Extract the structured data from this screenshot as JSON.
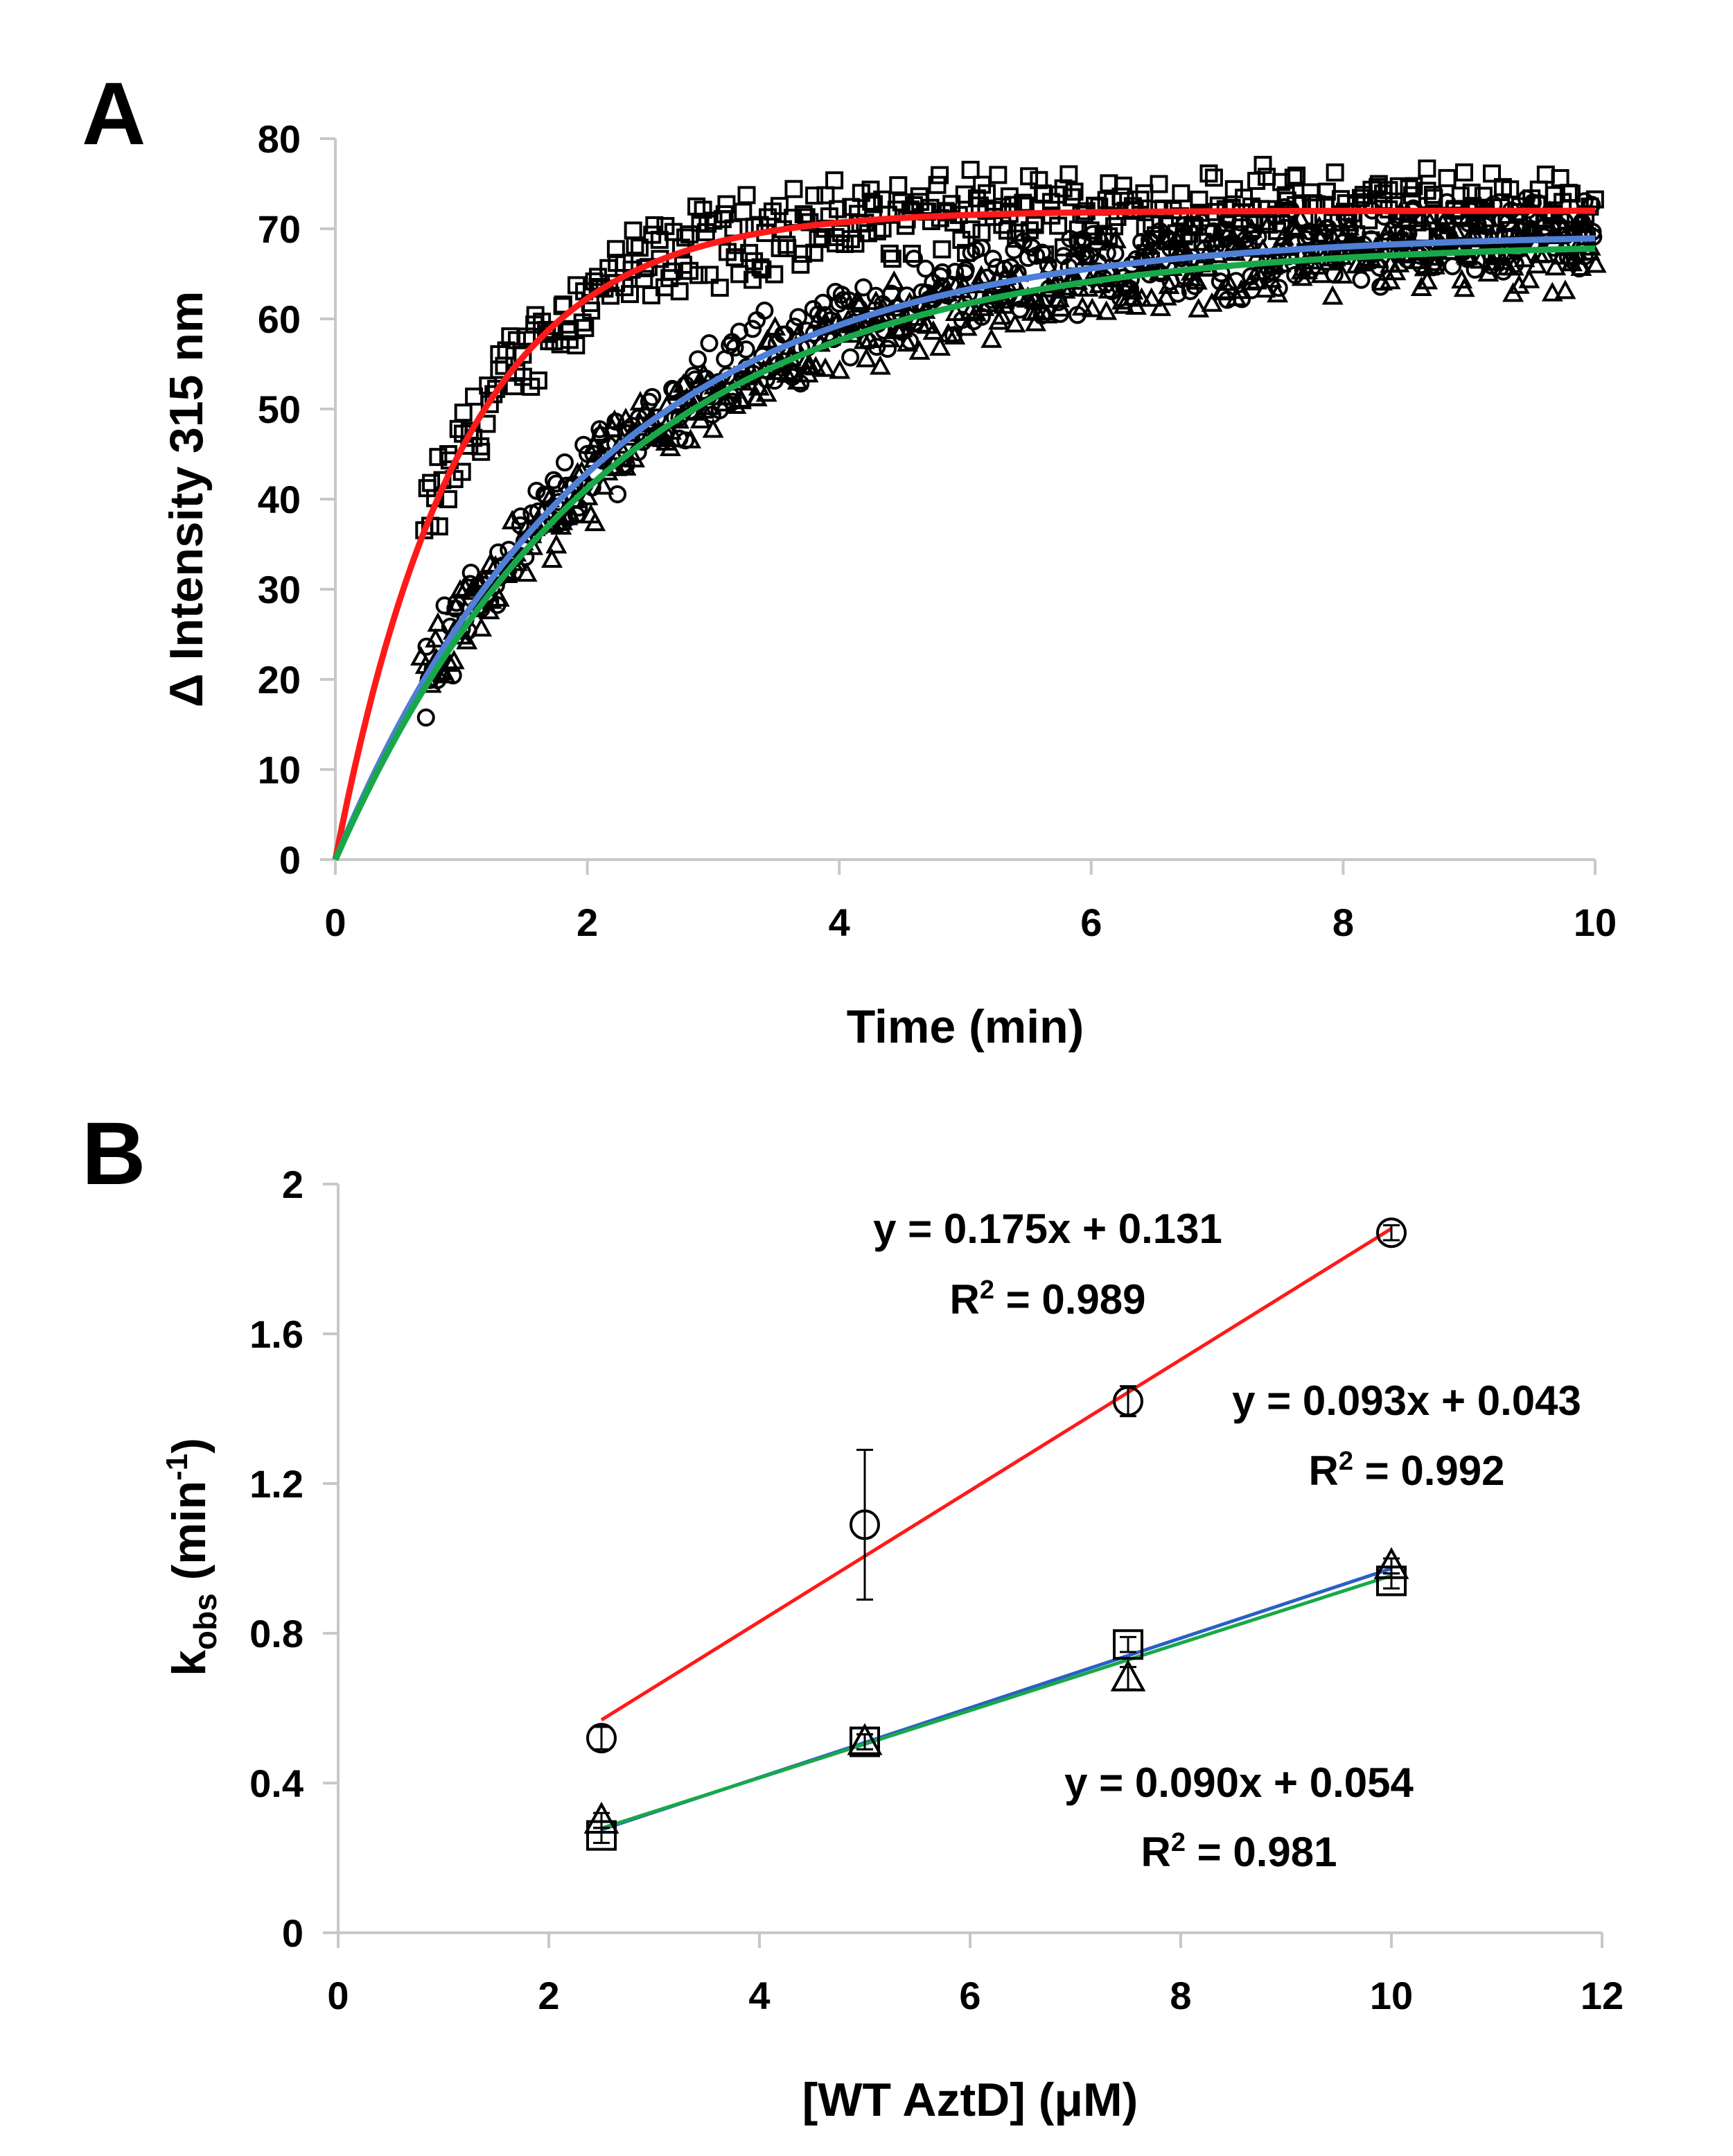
{
  "chart_data": [
    {
      "panel": "A",
      "type": "scatter",
      "xlabel": "Time (min)",
      "ylabel": "Δ Intensity 315 nm",
      "xlim": [
        0,
        10
      ],
      "ylim": [
        0,
        80
      ],
      "xticks": [
        0,
        2,
        4,
        6,
        8,
        10
      ],
      "yticks": [
        0,
        10,
        20,
        30,
        40,
        50,
        60,
        70,
        80
      ],
      "grid": false,
      "data_start_time": 0.7,
      "series": [
        {
          "name": "squares",
          "marker": "square",
          "fit_color": "#ff1a1a",
          "plateau": 72.0,
          "k_obs": 1.0,
          "data_start": 36
        },
        {
          "name": "circles",
          "marker": "circle",
          "fit_color": "#4f7fd6",
          "plateau": 69.5,
          "k_obs": 0.48,
          "data_start": 22
        },
        {
          "name": "triangles",
          "marker": "triangle",
          "fit_color": "#18a84a",
          "plateau": 68.5,
          "k_obs": 0.46,
          "data_start": 21
        }
      ]
    },
    {
      "panel": "B",
      "type": "scatter",
      "xlabel": "[WT AztD] (μM)",
      "ylabel": "k",
      "ylabel_sub": "obs",
      "ylabel_units": " (min",
      "ylabel_sup": "-1",
      "ylabel_close": ")",
      "xlim": [
        0,
        12
      ],
      "ylim": [
        0,
        2
      ],
      "xticks": [
        0,
        2,
        4,
        6,
        8,
        10,
        12
      ],
      "yticks": [
        "0",
        "0.4",
        "0.8",
        "1.2",
        "1.6",
        "2"
      ],
      "grid": false,
      "series": [
        {
          "name": "circles",
          "marker": "circle",
          "x": [
            2.5,
            5,
            7.5,
            10
          ],
          "y": [
            0.52,
            1.09,
            1.42,
            1.87
          ],
          "yerr": [
            0.03,
            0.2,
            0.04,
            0.02
          ],
          "fit": {
            "slope": 0.175,
            "intercept": 0.131,
            "color": "#ff1a1a"
          }
        },
        {
          "name": "squares",
          "marker": "square",
          "x": [
            2.5,
            5,
            7.5,
            10
          ],
          "y": [
            0.26,
            0.51,
            0.77,
            0.94
          ],
          "yerr": [
            0.02,
            0.02,
            0.02,
            0.02
          ],
          "fit": {
            "slope": 0.093,
            "intercept": 0.043,
            "color": "#2a5fc4"
          }
        },
        {
          "name": "triangles",
          "marker": "triangle",
          "x": [
            2.5,
            5,
            7.5,
            10
          ],
          "y": [
            0.3,
            0.51,
            0.68,
            0.98
          ],
          "yerr": [
            0.02,
            0.02,
            0.03,
            0.02
          ],
          "fit": {
            "slope": 0.09,
            "intercept": 0.054,
            "color": "#18a84a"
          }
        }
      ],
      "annotations": [
        {
          "line1": "y = 0.175x + 0.131",
          "r2_label": "R",
          "r2_sup": "2",
          "r2_value": " = 0.989"
        },
        {
          "line1": "y = 0.093x + 0.043",
          "r2_label": "R",
          "r2_sup": "2",
          "r2_value": " = 0.992"
        },
        {
          "line1": "y = 0.090x + 0.054",
          "r2_label": "R",
          "r2_sup": "2",
          "r2_value": " = 0.981"
        }
      ]
    }
  ],
  "panel_labels": [
    "A",
    "B"
  ]
}
